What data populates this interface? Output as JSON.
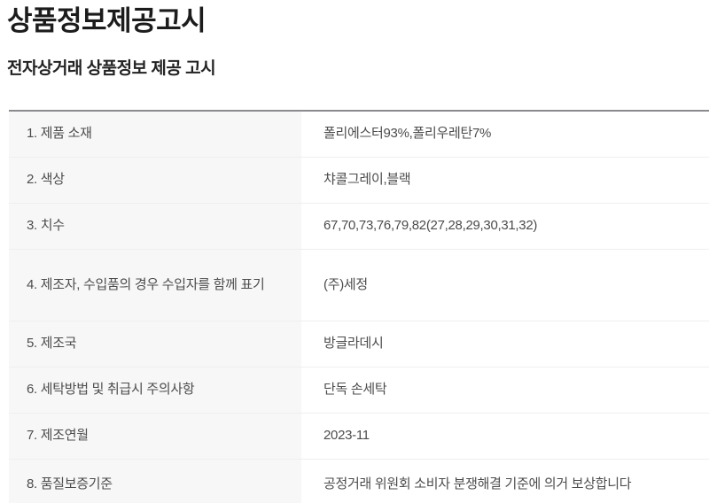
{
  "page": {
    "title": "상품정보제공고시",
    "subtitle": "전자상거래 상품정보 제공 고시"
  },
  "table": {
    "rows": [
      {
        "label": "1. 제품 소재",
        "value": "폴리에스터93%,폴리우레탄7%"
      },
      {
        "label": "2. 색상",
        "value": "챠콜그레이,블랙"
      },
      {
        "label": "3. 치수",
        "value": "67,70,73,76,79,82(27,28,29,30,31,32)"
      },
      {
        "label": "4. 제조자, 수입품의 경우 수입자를 함께 표기",
        "value": "(주)세정"
      },
      {
        "label": "5. 제조국",
        "value": "방글라데시"
      },
      {
        "label": "6. 세탁방법 및 취급시 주의사항",
        "value": "단독 손세탁"
      },
      {
        "label": "7. 제조연월",
        "value": "2023-11"
      },
      {
        "label": "8. 품질보증기준",
        "value": "공정거래 위원회 소비자 분쟁해결 기준에 의거 보상합니다"
      }
    ]
  },
  "colors": {
    "label_bg": "#f7f7f8",
    "table_top_border": "#8b8b8f",
    "row_separator": "#efefef",
    "body_text": "#4c4c4c",
    "heading_text": "#1c1c1c"
  }
}
